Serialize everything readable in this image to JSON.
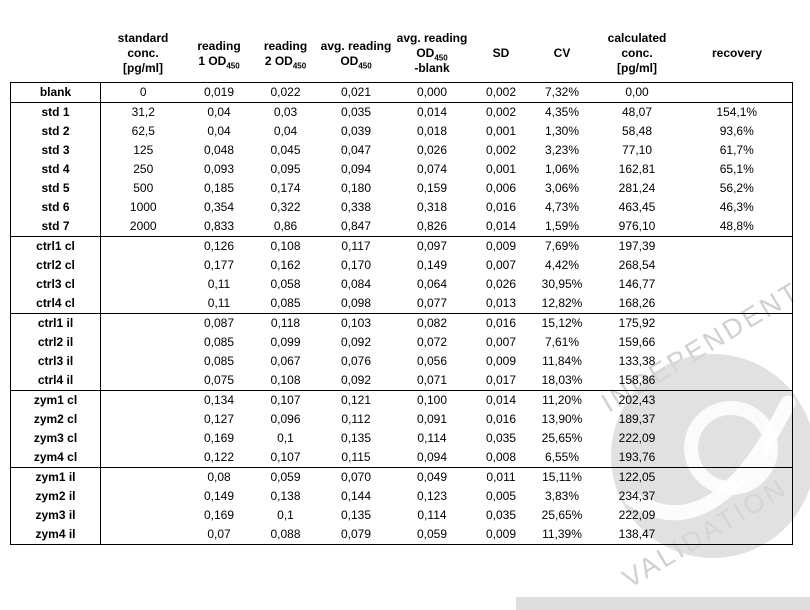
{
  "watermark": {
    "line1": "INDEPENDENT",
    "line2": "VALIDATION",
    "color": "#cbcbcb"
  },
  "table": {
    "headers": {
      "standard": [
        "standard",
        "conc.",
        "[pg/ml]"
      ],
      "reading1": [
        "reading",
        "1 OD"
      ],
      "reading2": [
        "reading",
        "2 OD"
      ],
      "avg": [
        "avg. reading",
        "OD"
      ],
      "avg_blank": [
        "avg. reading",
        "OD",
        "-blank"
      ],
      "od_subscript": "450",
      "sd": "SD",
      "cv": "CV",
      "calculated": [
        "calculated",
        "conc.",
        "[pg/ml]"
      ],
      "recovery": "recovery"
    },
    "groups": [
      {
        "rows": [
          [
            "blank",
            "0",
            "0,019",
            "0,022",
            "0,021",
            "0,000",
            "0,002",
            "7,32%",
            "0,00",
            ""
          ]
        ]
      },
      {
        "rows": [
          [
            "std 1",
            "31,2",
            "0,04",
            "0,03",
            "0,035",
            "0,014",
            "0,002",
            "4,35%",
            "48,07",
            "154,1%"
          ],
          [
            "std 2",
            "62,5",
            "0,04",
            "0,04",
            "0,039",
            "0,018",
            "0,001",
            "1,30%",
            "58,48",
            "93,6%"
          ],
          [
            "std 3",
            "125",
            "0,048",
            "0,045",
            "0,047",
            "0,026",
            "0,002",
            "3,23%",
            "77,10",
            "61,7%"
          ],
          [
            "std 4",
            "250",
            "0,093",
            "0,095",
            "0,094",
            "0,074",
            "0,001",
            "1,06%",
            "162,81",
            "65,1%"
          ],
          [
            "std 5",
            "500",
            "0,185",
            "0,174",
            "0,180",
            "0,159",
            "0,006",
            "3,06%",
            "281,24",
            "56,2%"
          ],
          [
            "std 6",
            "1000",
            "0,354",
            "0,322",
            "0,338",
            "0,318",
            "0,016",
            "4,73%",
            "463,45",
            "46,3%"
          ],
          [
            "std 7",
            "2000",
            "0,833",
            "0,86",
            "0,847",
            "0,826",
            "0,014",
            "1,59%",
            "976,10",
            "48,8%"
          ]
        ]
      },
      {
        "rows": [
          [
            "ctrl1 cl",
            "",
            "0,126",
            "0,108",
            "0,117",
            "0,097",
            "0,009",
            "7,69%",
            "197,39",
            ""
          ],
          [
            "ctrl2 cl",
            "",
            "0,177",
            "0,162",
            "0,170",
            "0,149",
            "0,007",
            "4,42%",
            "268,54",
            ""
          ],
          [
            "ctrl3 cl",
            "",
            "0,11",
            "0,058",
            "0,084",
            "0,064",
            "0,026",
            "30,95%",
            "146,77",
            ""
          ],
          [
            "ctrl4 cl",
            "",
            "0,11",
            "0,085",
            "0,098",
            "0,077",
            "0,013",
            "12,82%",
            "168,26",
            ""
          ]
        ]
      },
      {
        "rows": [
          [
            "ctrl1 il",
            "",
            "0,087",
            "0,118",
            "0,103",
            "0,082",
            "0,016",
            "15,12%",
            "175,92",
            ""
          ],
          [
            "ctrl2 il",
            "",
            "0,085",
            "0,099",
            "0,092",
            "0,072",
            "0,007",
            "7,61%",
            "159,66",
            ""
          ],
          [
            "ctrl3 il",
            "",
            "0,085",
            "0,067",
            "0,076",
            "0,056",
            "0,009",
            "11,84%",
            "133,38",
            ""
          ],
          [
            "ctrl4 il",
            "",
            "0,075",
            "0,108",
            "0,092",
            "0,071",
            "0,017",
            "18,03%",
            "158,86",
            ""
          ]
        ]
      },
      {
        "rows": [
          [
            "zym1 cl",
            "",
            "0,134",
            "0,107",
            "0,121",
            "0,100",
            "0,014",
            "11,20%",
            "202,43",
            ""
          ],
          [
            "zym2 cl",
            "",
            "0,127",
            "0,096",
            "0,112",
            "0,091",
            "0,016",
            "13,90%",
            "189,37",
            ""
          ],
          [
            "zym3 cl",
            "",
            "0,169",
            "0,1",
            "0,135",
            "0,114",
            "0,035",
            "25,65%",
            "222,09",
            ""
          ],
          [
            "zym4 cl",
            "",
            "0,122",
            "0,107",
            "0,115",
            "0,094",
            "0,008",
            "6,55%",
            "193,76",
            ""
          ]
        ]
      },
      {
        "rows": [
          [
            "zym1 il",
            "",
            "0,08",
            "0,059",
            "0,070",
            "0,049",
            "0,011",
            "15,11%",
            "122,05",
            ""
          ],
          [
            "zym2 il",
            "",
            "0,149",
            "0,138",
            "0,144",
            "0,123",
            "0,005",
            "3,83%",
            "234,37",
            ""
          ],
          [
            "zym3 il",
            "",
            "0,169",
            "0,1",
            "0,135",
            "0,114",
            "0,035",
            "25,65%",
            "222,09",
            ""
          ],
          [
            "zym4 il",
            "",
            "0,07",
            "0,088",
            "0,079",
            "0,059",
            "0,009",
            "11,39%",
            "138,47",
            ""
          ]
        ]
      }
    ]
  }
}
